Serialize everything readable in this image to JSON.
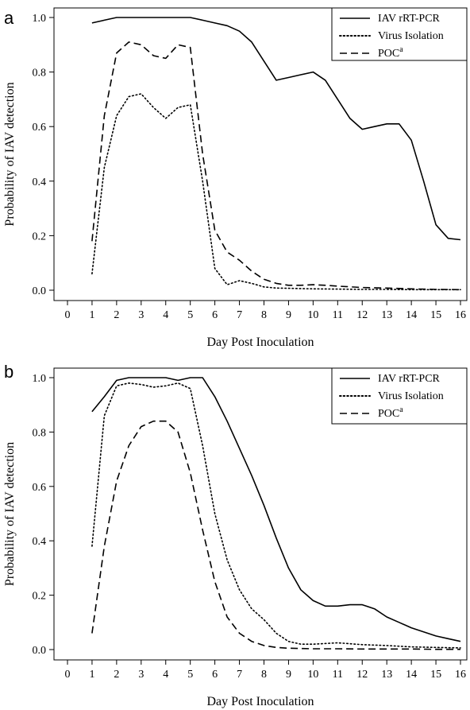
{
  "chart_data": [
    {
      "type": "line",
      "panel_label": "a",
      "xlabel": "Day Post Inoculation",
      "ylabel": "Probability of IAV detection",
      "xlim": [
        0,
        16
      ],
      "ylim": [
        0,
        1
      ],
      "x_ticks": [
        0,
        1,
        2,
        3,
        4,
        5,
        6,
        7,
        8,
        9,
        10,
        11,
        12,
        13,
        14,
        15,
        16
      ],
      "y_ticks": [
        "0.0",
        "0.2",
        "0.4",
        "0.6",
        "0.8",
        "1.0"
      ],
      "legend_position": "top-right",
      "series": [
        {
          "name": "IAV rRT-PCR",
          "style": "solid",
          "x": [
            1,
            1.5,
            2,
            2.5,
            3,
            3.5,
            4,
            4.5,
            5,
            5.5,
            6,
            6.5,
            7,
            7.5,
            8,
            8.5,
            9,
            9.5,
            10,
            10.5,
            11,
            11.5,
            12,
            12.5,
            13,
            13.5,
            14,
            14.5,
            15,
            15.5,
            16
          ],
          "y": [
            0.98,
            0.99,
            1.0,
            1.0,
            1.0,
            1.0,
            1.0,
            1.0,
            1.0,
            0.99,
            0.98,
            0.97,
            0.95,
            0.91,
            0.84,
            0.77,
            0.78,
            0.79,
            0.8,
            0.77,
            0.7,
            0.63,
            0.59,
            0.6,
            0.61,
            0.61,
            0.55,
            0.4,
            0.24,
            0.19,
            0.185
          ]
        },
        {
          "name": "Virus Isolation",
          "style": "dotted",
          "x": [
            1,
            1.5,
            2,
            2.5,
            3,
            3.5,
            4,
            4.5,
            5,
            5.5,
            6,
            6.5,
            7,
            7.5,
            8,
            8.5,
            9,
            10,
            11,
            12,
            13,
            14,
            15,
            16
          ],
          "y": [
            0.06,
            0.45,
            0.64,
            0.71,
            0.72,
            0.67,
            0.63,
            0.67,
            0.68,
            0.4,
            0.08,
            0.02,
            0.035,
            0.025,
            0.012,
            0.008,
            0.007,
            0.005,
            0.004,
            0.003,
            0.003,
            0.002,
            0.002,
            0.002
          ]
        },
        {
          "name": "POC",
          "name_superscript": "a",
          "style": "dashed",
          "x": [
            1,
            1.5,
            2,
            2.5,
            3,
            3.5,
            4,
            4.5,
            5,
            5.5,
            6,
            6.5,
            7,
            7.5,
            8,
            8.5,
            9,
            9.5,
            10,
            10.5,
            11,
            12,
            13,
            14,
            15,
            16
          ],
          "y": [
            0.18,
            0.64,
            0.87,
            0.91,
            0.9,
            0.86,
            0.85,
            0.9,
            0.89,
            0.5,
            0.22,
            0.14,
            0.11,
            0.07,
            0.04,
            0.025,
            0.018,
            0.018,
            0.02,
            0.018,
            0.015,
            0.01,
            0.008,
            0.005,
            0.003,
            0.002
          ]
        }
      ]
    },
    {
      "type": "line",
      "panel_label": "b",
      "xlabel": "Day Post Inoculation",
      "ylabel": "Probability of IAV detection",
      "xlim": [
        0,
        16
      ],
      "ylim": [
        0,
        1
      ],
      "x_ticks": [
        0,
        1,
        2,
        3,
        4,
        5,
        6,
        7,
        8,
        9,
        10,
        11,
        12,
        13,
        14,
        15,
        16
      ],
      "y_ticks": [
        "0.0",
        "0.2",
        "0.4",
        "0.6",
        "0.8",
        "1.0"
      ],
      "legend_position": "top-right",
      "series": [
        {
          "name": "IAV rRT-PCR",
          "style": "solid",
          "x": [
            1,
            1.5,
            2,
            2.5,
            3,
            3.5,
            4,
            4.5,
            5,
            5.5,
            6,
            6.5,
            7,
            7.5,
            8,
            8.5,
            9,
            9.5,
            10,
            10.5,
            11,
            11.5,
            12,
            12.5,
            13,
            13.5,
            14,
            14.5,
            15,
            15.5,
            16
          ],
          "y": [
            0.875,
            0.93,
            0.99,
            1.0,
            1.0,
            1.0,
            1.0,
            0.99,
            1.0,
            1.0,
            0.93,
            0.84,
            0.74,
            0.64,
            0.53,
            0.41,
            0.3,
            0.22,
            0.18,
            0.16,
            0.16,
            0.165,
            0.165,
            0.15,
            0.12,
            0.1,
            0.08,
            0.065,
            0.05,
            0.04,
            0.03
          ]
        },
        {
          "name": "Virus Isolation",
          "style": "dotted",
          "x": [
            1,
            1.5,
            2,
            2.5,
            3,
            3.5,
            4,
            4.5,
            5,
            5.5,
            6,
            6.5,
            7,
            7.5,
            8,
            8.5,
            9,
            9.5,
            10,
            11,
            12,
            13,
            14,
            15,
            16
          ],
          "y": [
            0.38,
            0.86,
            0.97,
            0.98,
            0.975,
            0.965,
            0.97,
            0.98,
            0.96,
            0.75,
            0.5,
            0.33,
            0.22,
            0.15,
            0.11,
            0.06,
            0.03,
            0.02,
            0.02,
            0.025,
            0.018,
            0.015,
            0.01,
            0.008,
            0.006
          ]
        },
        {
          "name": "POC",
          "name_superscript": "a",
          "style": "dashed",
          "x": [
            1,
            1.5,
            2,
            2.5,
            3,
            3.5,
            4,
            4.5,
            5,
            5.5,
            6,
            6.5,
            7,
            7.5,
            8,
            8.5,
            9,
            10,
            11,
            12,
            13,
            14,
            15,
            16
          ],
          "y": [
            0.06,
            0.38,
            0.62,
            0.75,
            0.82,
            0.84,
            0.84,
            0.8,
            0.65,
            0.44,
            0.25,
            0.12,
            0.06,
            0.03,
            0.015,
            0.008,
            0.005,
            0.003,
            0.003,
            0.002,
            0.002,
            0.002,
            0.001,
            0.001
          ]
        }
      ]
    }
  ]
}
